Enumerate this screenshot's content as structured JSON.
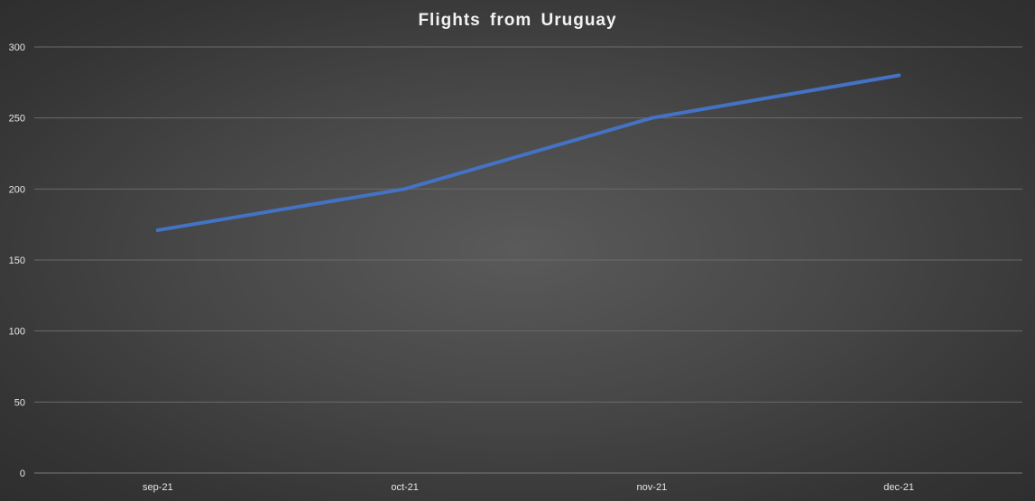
{
  "chart_data": {
    "type": "line",
    "title": "Flights  from  Uruguay",
    "categories": [
      "sep-21",
      "oct-21",
      "nov-21",
      "dec-21"
    ],
    "series": [
      {
        "values": [
          171,
          200,
          250,
          280
        ],
        "color": "#4472c4"
      }
    ],
    "ylim": [
      0,
      300
    ],
    "yticks": [
      0,
      50,
      100,
      150,
      200,
      250,
      300
    ],
    "grid": true,
    "legend": "none"
  }
}
